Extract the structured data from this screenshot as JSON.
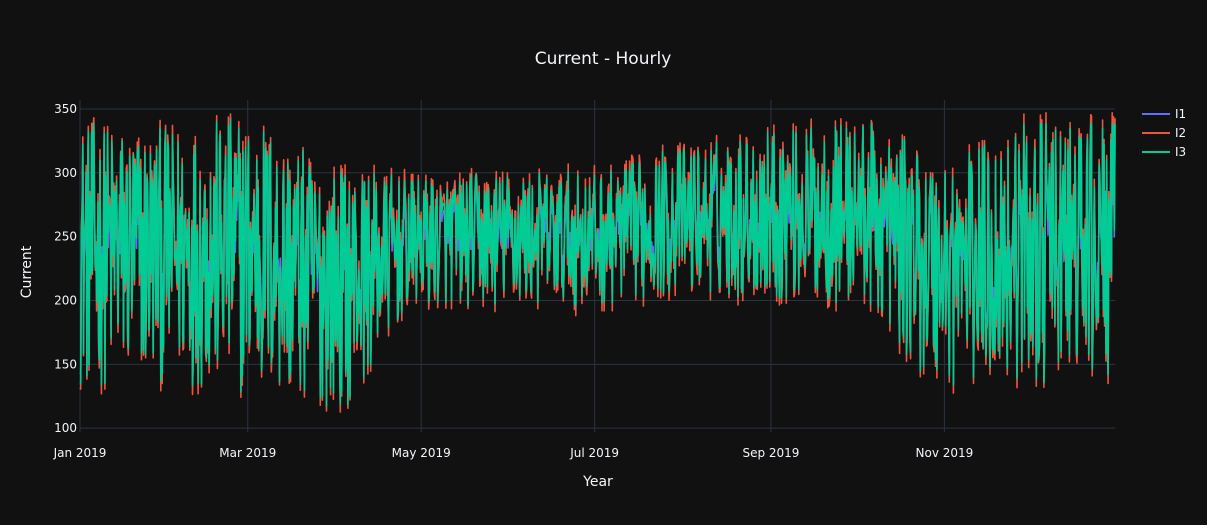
{
  "chart_data": {
    "type": "line",
    "title": "Current - Hourly",
    "xlabel": "Year",
    "ylabel": "Current",
    "x_range": [
      "2019-01-01",
      "2019-12-31"
    ],
    "ylim": [
      97,
      357
    ],
    "y_ticks": [
      100,
      150,
      200,
      250,
      300,
      350
    ],
    "x_ticks": [
      {
        "date": "2019-01-01",
        "label": "Jan 2019"
      },
      {
        "date": "2019-03-01",
        "label": "Mar 2019"
      },
      {
        "date": "2019-05-01",
        "label": "May 2019"
      },
      {
        "date": "2019-07-01",
        "label": "Jul 2019"
      },
      {
        "date": "2019-09-01",
        "label": "Sep 2019"
      },
      {
        "date": "2019-11-01",
        "label": "Nov 2019"
      }
    ],
    "grid": true,
    "legend_position": "top-right",
    "series": [
      {
        "name": "I1",
        "color": "#636efa"
      },
      {
        "name": "I2",
        "color": "#ef553b"
      },
      {
        "name": "I3",
        "color": "#00cc96"
      }
    ],
    "envelope_monthly": {
      "months": [
        "2019-01",
        "2019-02",
        "2019-03",
        "2019-04",
        "2019-05",
        "2019-06",
        "2019-07",
        "2019-08",
        "2019-09",
        "2019-10",
        "2019-11",
        "2019-12"
      ],
      "min": [
        130,
        135,
        125,
        115,
        195,
        195,
        195,
        205,
        200,
        195,
        130,
        135
      ],
      "max": [
        340,
        335,
        345,
        305,
        295,
        300,
        300,
        320,
        335,
        340,
        315,
        340
      ]
    }
  }
}
